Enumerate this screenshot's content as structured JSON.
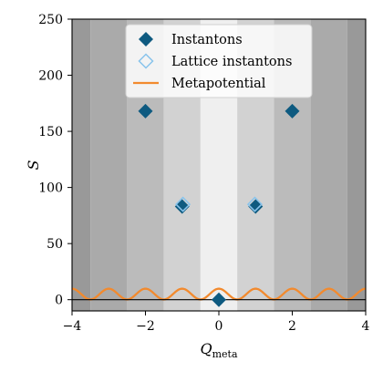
{
  "chart_data": {
    "type": "scatter",
    "xlim": [
      -4,
      4
    ],
    "ylim": [
      -10,
      250
    ],
    "xticks": [
      -4,
      -2,
      0,
      2,
      4
    ],
    "xtick_labels": [
      "−4",
      "−2",
      "0",
      "2",
      "4"
    ],
    "yticks": [
      0,
      50,
      100,
      150,
      200,
      250
    ],
    "ytick_labels": [
      "0",
      "50",
      "100",
      "150",
      "200",
      "250"
    ],
    "xlabel": "Q",
    "xlabel_sub": "meta",
    "ylabel": "S",
    "legend_position": "top-center",
    "background_bands": [
      {
        "from": -4.0,
        "to": -3.5,
        "color": "#999999"
      },
      {
        "from": -3.5,
        "to": -2.5,
        "color": "#aaaaaa"
      },
      {
        "from": -2.5,
        "to": -1.5,
        "color": "#bbbbbb"
      },
      {
        "from": -1.5,
        "to": -0.5,
        "color": "#d2d2d2"
      },
      {
        "from": -0.5,
        "to": 0.5,
        "color": "#efefef"
      },
      {
        "from": 0.5,
        "to": 1.5,
        "color": "#d2d2d2"
      },
      {
        "from": 1.5,
        "to": 2.5,
        "color": "#bbbbbb"
      },
      {
        "from": 2.5,
        "to": 3.5,
        "color": "#aaaaaa"
      },
      {
        "from": 3.5,
        "to": 4.0,
        "color": "#999999"
      }
    ],
    "series": [
      {
        "name": "Instantons",
        "kind": "filled-diamond",
        "color": "#0e5a80",
        "points": [
          {
            "x": -2,
            "y": 168
          },
          {
            "x": -1,
            "y": 83
          },
          {
            "x": 0,
            "y": 0
          },
          {
            "x": 1,
            "y": 83
          },
          {
            "x": 2,
            "y": 168
          }
        ]
      },
      {
        "name": "Lattice instantons",
        "kind": "open-diamond",
        "color": "#89c4ec",
        "points": [
          {
            "x": -0.98,
            "y": 85
          },
          {
            "x": 0.98,
            "y": 85
          }
        ]
      },
      {
        "name": "Metapotential",
        "kind": "line",
        "color": "#f28a2e",
        "baseline": 5,
        "amplitude": 4.8,
        "period": 1
      }
    ],
    "hline": {
      "y": 0,
      "color": "#000000"
    }
  }
}
